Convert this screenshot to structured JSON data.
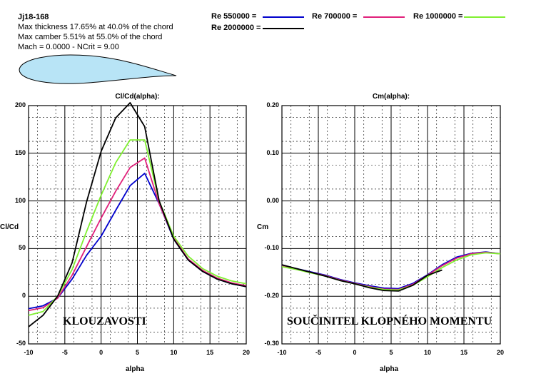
{
  "header": {
    "airfoil_name": "Jj18-168",
    "thickness": "Max thickness 17.65% at 40.0% of the chord",
    "camber": "Max camber 5.51% at 55.0% of the chord",
    "mach": "Mach = 0.0000 - NCrit = 9.00"
  },
  "legend": [
    {
      "label": "Re 550000 =",
      "color": "#0000cc"
    },
    {
      "label": "Re 700000 =",
      "color": "#e0207a"
    },
    {
      "label": "Re 1000000 =",
      "color": "#80f030"
    },
    {
      "label": "Re 2000000 =",
      "color": "#000000"
    }
  ],
  "airfoil_color": "#b8e4f6",
  "chart_data": [
    {
      "type": "line",
      "title": "Cl/Cd(alpha):",
      "xlabel": "alpha",
      "ylabel": "Cl/Cd",
      "xlim": [
        -10,
        20
      ],
      "ylim": [
        -50,
        200
      ],
      "xticks": [
        "-10",
        "-5",
        "0",
        "5",
        "10",
        "15",
        "20"
      ],
      "yticks": [
        "200",
        "150",
        "100",
        "50",
        "0",
        "-50"
      ],
      "grid": true,
      "annotation": "KLOUZAVOSTI",
      "series": [
        {
          "name": "Re 550000",
          "color": "#0000cc",
          "x": [
            -10,
            -8,
            -6,
            -4,
            -2,
            0,
            2,
            4,
            6,
            8,
            10,
            12,
            14,
            16,
            18,
            20
          ],
          "y": [
            -13,
            -10,
            -2,
            18,
            43,
            63,
            90,
            116,
            129,
            97,
            60,
            38,
            26,
            18,
            13,
            10
          ]
        },
        {
          "name": "Re 700000",
          "color": "#e0207a",
          "x": [
            -10,
            -8,
            -6,
            -4,
            -2,
            0,
            2,
            4,
            6,
            8,
            10,
            12,
            14,
            16,
            18,
            20
          ],
          "y": [
            -15,
            -12,
            -2,
            22,
            52,
            82,
            110,
            135,
            145,
            97,
            61,
            39,
            27,
            19,
            14,
            11
          ]
        },
        {
          "name": "Re 1000000",
          "color": "#80f030",
          "x": [
            -10,
            -8,
            -6,
            -4,
            -2,
            0,
            2,
            4,
            6,
            8,
            10,
            12,
            14,
            16,
            18,
            20
          ],
          "y": [
            -20,
            -16,
            0,
            28,
            68,
            106,
            140,
            164,
            164,
            100,
            63,
            42,
            29,
            21,
            16,
            13
          ]
        },
        {
          "name": "Re 2000000",
          "color": "#000000",
          "x": [
            -10,
            -8,
            -6,
            -4,
            -2,
            0,
            2,
            4,
            6,
            8,
            10,
            12,
            14,
            16,
            18,
            20
          ],
          "y": [
            -32,
            -20,
            0,
            35,
            99,
            152,
            187,
            203,
            178,
            100,
            60,
            38,
            26,
            18,
            13,
            10
          ]
        }
      ]
    },
    {
      "type": "line",
      "title": "Cm(alpha):",
      "xlabel": "alpha",
      "ylabel": "Cm",
      "xlim": [
        -10,
        20
      ],
      "ylim": [
        -0.3,
        0.2
      ],
      "xticks": [
        "-10",
        "-5",
        "0",
        "5",
        "10",
        "15",
        "20"
      ],
      "yticks": [
        "0.20",
        "0.10",
        "0.00",
        "-0.10",
        "-0.20",
        "-0.30"
      ],
      "grid": true,
      "annotation": "SOUČINITEL KLOPNÉHO MOMENTU",
      "series": [
        {
          "name": "Re 550000",
          "color": "#0000cc",
          "x": [
            -10,
            -8,
            -6,
            -4,
            -2,
            0,
            2,
            4,
            6,
            8,
            10,
            12,
            14,
            16,
            18,
            20
          ],
          "y": [
            -0.136,
            -0.142,
            -0.149,
            -0.156,
            -0.165,
            -0.172,
            -0.178,
            -0.183,
            -0.184,
            -0.173,
            -0.155,
            -0.134,
            -0.118,
            -0.11,
            -0.107,
            -0.111
          ]
        },
        {
          "name": "Re 700000",
          "color": "#e0207a",
          "x": [
            -10,
            -8,
            -6,
            -4,
            -2,
            0,
            2,
            4,
            6,
            8,
            10,
            12,
            14,
            16,
            18,
            20
          ],
          "y": [
            -0.137,
            -0.143,
            -0.15,
            -0.157,
            -0.166,
            -0.173,
            -0.18,
            -0.185,
            -0.186,
            -0.175,
            -0.156,
            -0.136,
            -0.12,
            -0.111,
            -0.108,
            -0.111
          ]
        },
        {
          "name": "Re 1000000",
          "color": "#80f030",
          "x": [
            -10,
            -8,
            -6,
            -4,
            -2,
            0,
            2,
            4,
            6,
            8,
            10,
            12,
            14,
            16,
            18,
            20
          ],
          "y": [
            -0.138,
            -0.144,
            -0.151,
            -0.158,
            -0.167,
            -0.174,
            -0.181,
            -0.186,
            -0.187,
            -0.177,
            -0.159,
            -0.14,
            -0.124,
            -0.113,
            -0.109,
            -0.111
          ]
        },
        {
          "name": "Re 2000000",
          "color": "#000000",
          "x": [
            -10,
            -8,
            -6,
            -4,
            -2,
            0,
            2,
            4,
            6,
            8,
            10,
            12
          ],
          "y": [
            -0.134,
            -0.142,
            -0.15,
            -0.158,
            -0.167,
            -0.174,
            -0.182,
            -0.188,
            -0.189,
            -0.177,
            -0.156,
            -0.145
          ]
        }
      ]
    }
  ]
}
